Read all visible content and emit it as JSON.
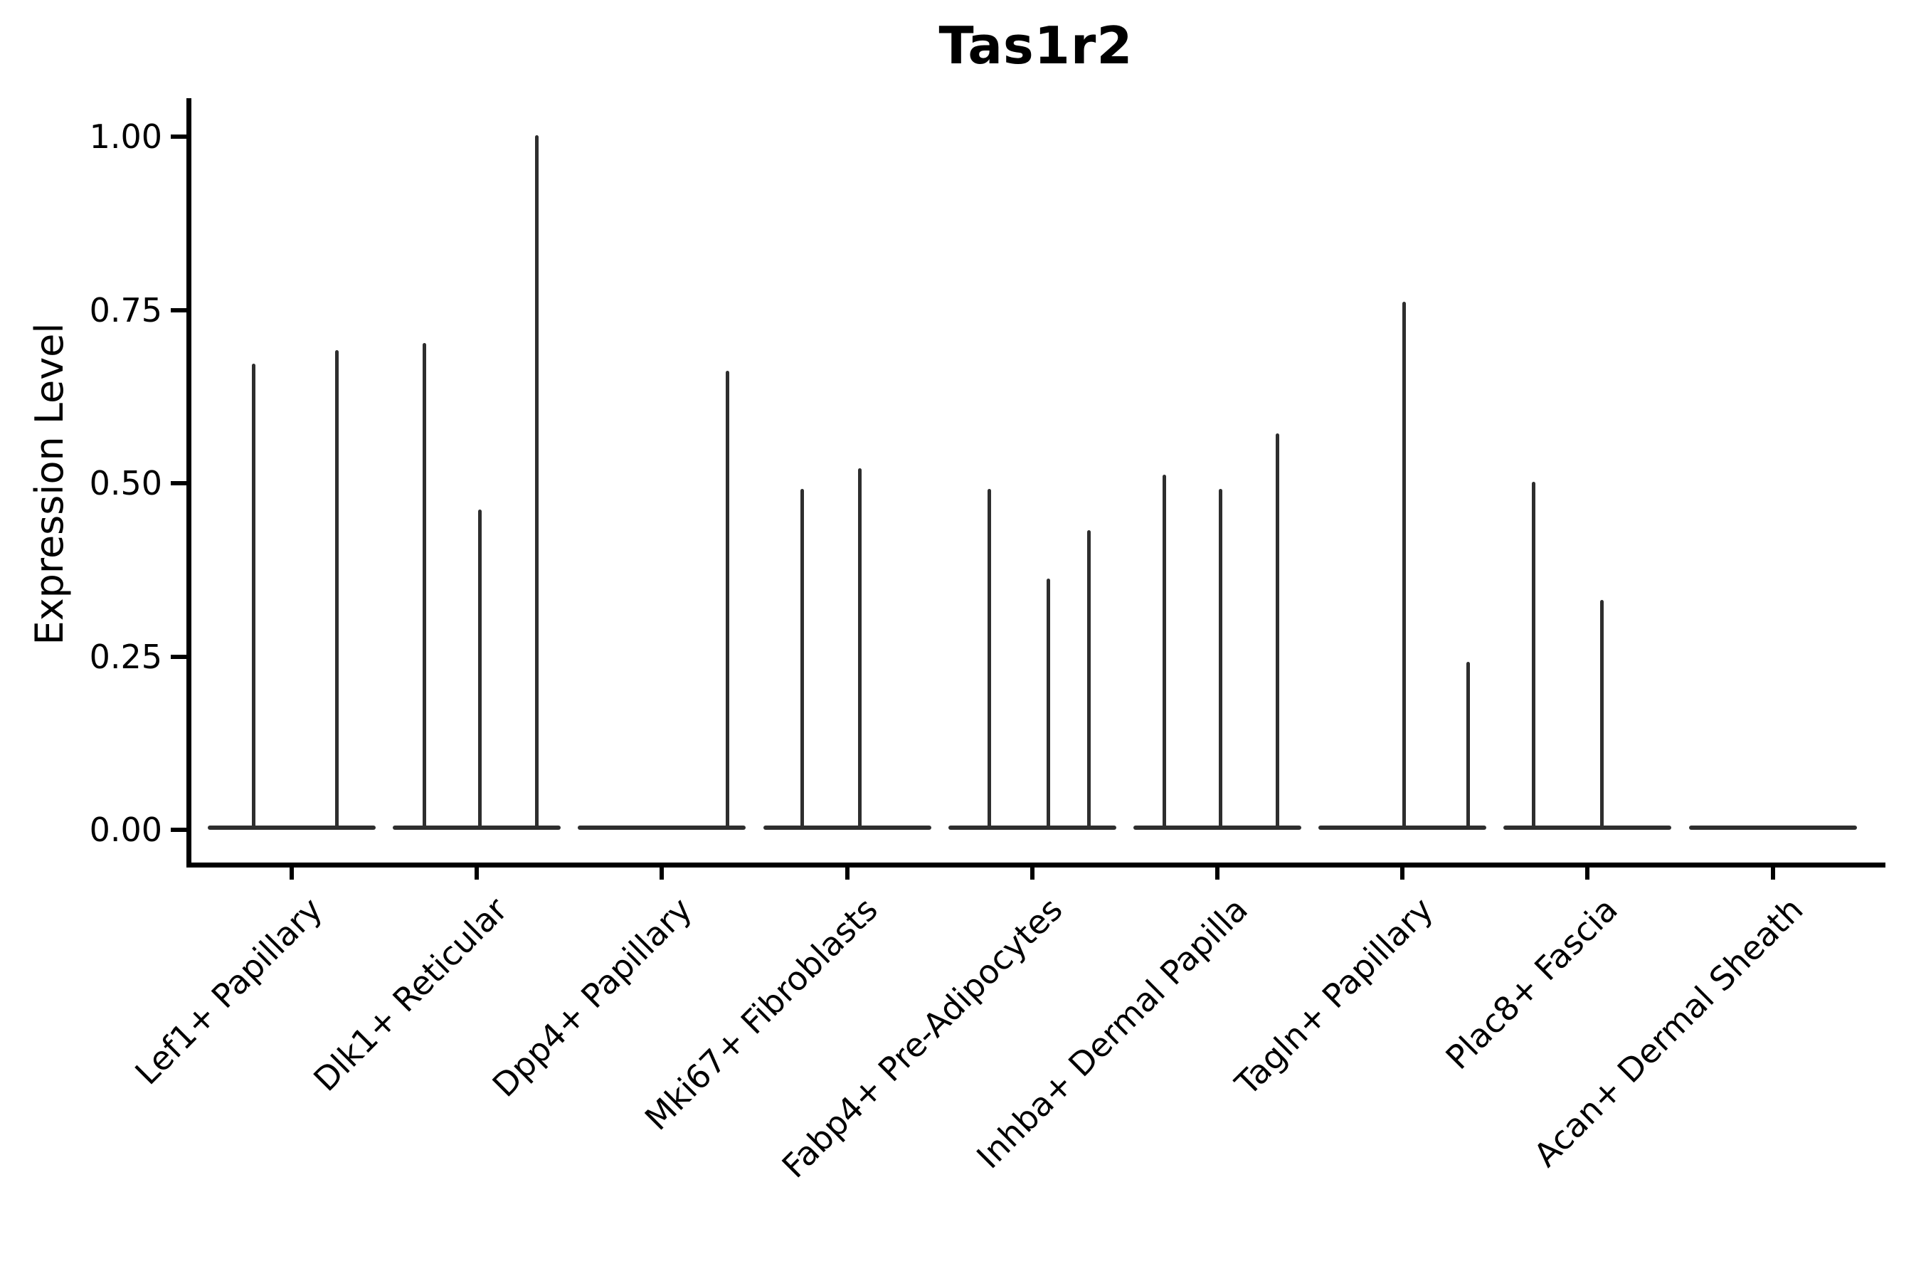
{
  "title": "Tas1r2",
  "colors": {
    "violin_line": "#2e2e2e",
    "axis": "#000000",
    "text": "#000000",
    "background": "#ffffff"
  },
  "chart_data": {
    "type": "violin",
    "title": "Tas1r2",
    "xlabel": "",
    "ylabel": "Expression Level",
    "ylim": [
      0,
      1.05
    ],
    "grid": false,
    "legend": "none",
    "y_ticks": [
      {
        "label": "0.00",
        "value": 0.0
      },
      {
        "label": "0.25",
        "value": 0.25
      },
      {
        "label": "0.50",
        "value": 0.5
      },
      {
        "label": "0.75",
        "value": 0.75
      },
      {
        "label": "1.00",
        "value": 1.0
      }
    ],
    "description": "Single-cell expression violin plot; each category shows a flat baseline at 0 with thin vertical spikes (near-zero-width violins) reaching the peak expression values listed.",
    "categories": [
      {
        "label": "Lef1+ Papillary",
        "spikes": [
          {
            "x_offset": -54,
            "peak": 0.67
          },
          {
            "x_offset": 63,
            "peak": 0.69
          }
        ]
      },
      {
        "label": "Dlk1+ Reticular",
        "spikes": [
          {
            "x_offset": -74,
            "peak": 0.7
          },
          {
            "x_offset": 4,
            "peak": 0.46
          },
          {
            "x_offset": 84,
            "peak": 1.0
          }
        ]
      },
      {
        "label": "Dpp4+ Papillary",
        "spikes": [
          {
            "x_offset": 92,
            "peak": 0.66
          }
        ]
      },
      {
        "label": "Mki67+ Fibroblasts",
        "spikes": [
          {
            "x_offset": -63,
            "peak": 0.49
          },
          {
            "x_offset": 18,
            "peak": 0.52
          }
        ]
      },
      {
        "label": "Fabp4+ Pre-Adipocytes",
        "spikes": [
          {
            "x_offset": -60,
            "peak": 0.49
          },
          {
            "x_offset": 23,
            "peak": 0.36
          },
          {
            "x_offset": 80,
            "peak": 0.43
          }
        ]
      },
      {
        "label": "Inhba+ Dermal Papilla",
        "spikes": [
          {
            "x_offset": -75,
            "peak": 0.51
          },
          {
            "x_offset": 4,
            "peak": 0.49
          },
          {
            "x_offset": 84,
            "peak": 0.57
          }
        ]
      },
      {
        "label": "Tagln+ Papillary",
        "spikes": [
          {
            "x_offset": 2,
            "peak": 0.76
          },
          {
            "x_offset": 92,
            "peak": 0.24
          }
        ]
      },
      {
        "label": "Plac8+ Fascia",
        "spikes": [
          {
            "x_offset": -76,
            "peak": 0.5
          },
          {
            "x_offset": 20,
            "peak": 0.33
          }
        ]
      },
      {
        "label": "Acan+ Dermal Sheath",
        "spikes": []
      }
    ]
  }
}
